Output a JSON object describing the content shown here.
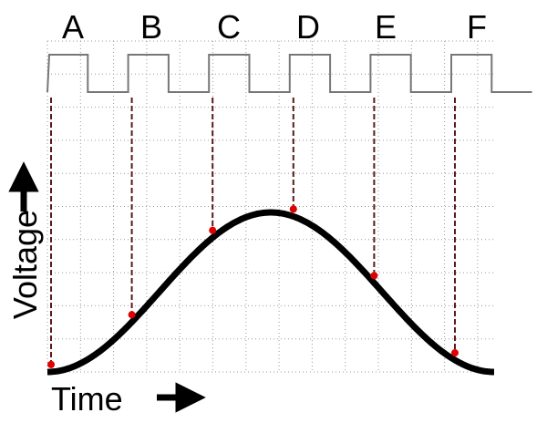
{
  "labels": [
    "A",
    "B",
    "C",
    "D",
    "E",
    "F"
  ],
  "axes": {
    "y": "Voltage",
    "x": "Time"
  }
}
